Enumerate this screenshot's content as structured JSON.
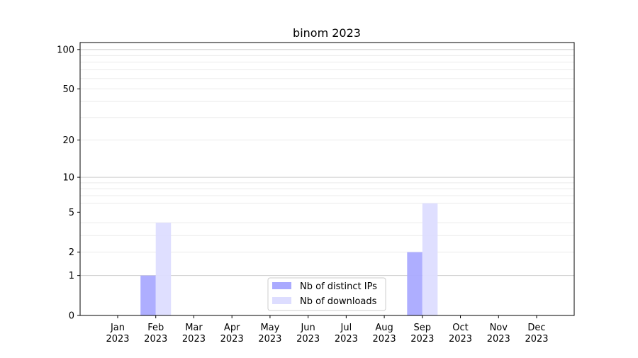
{
  "chart_data": {
    "type": "bar",
    "title": "binom 2023",
    "xlabel": "",
    "ylabel": "",
    "y_scale": "log(1+y)",
    "ylim": [
      0,
      113
    ],
    "grid": true,
    "legend_placement": "lower center",
    "categories": [
      "Jan\n2023",
      "Feb\n2023",
      "Mar\n2023",
      "Apr\n2023",
      "May\n2023",
      "Jun\n2023",
      "Jul\n2023",
      "Aug\n2023",
      "Sep\n2023",
      "Oct\n2023",
      "Nov\n2023",
      "Dec\n2023"
    ],
    "y_ticks": [
      0,
      1,
      2,
      5,
      10,
      20,
      50,
      100
    ],
    "series": [
      {
        "name": "Nb of distinct IPs",
        "color": "#aaaaff",
        "values": [
          0,
          1,
          0,
          0,
          0,
          0,
          0,
          0,
          2,
          0,
          0,
          0
        ]
      },
      {
        "name": "Nb of downloads",
        "color": "#ddddff",
        "values": [
          0,
          4,
          0,
          0,
          0,
          0,
          0,
          0,
          6,
          0,
          0,
          0
        ]
      }
    ]
  }
}
